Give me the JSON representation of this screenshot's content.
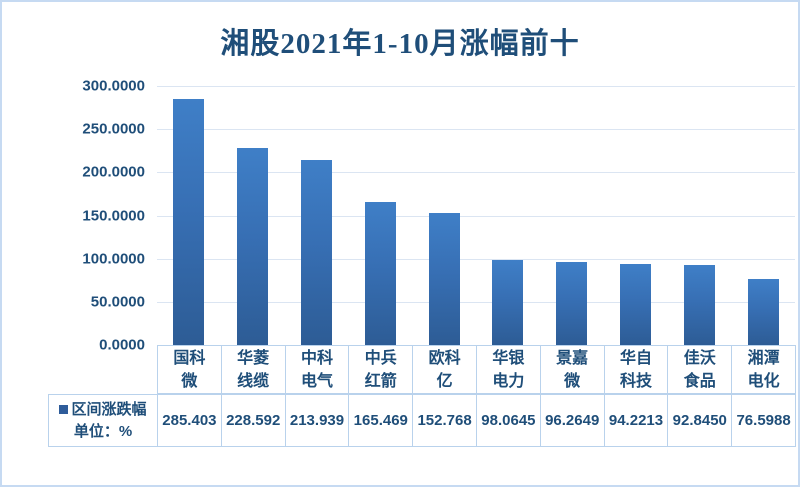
{
  "title": "湘股2021年1-10月涨幅前十",
  "legend": {
    "series_label": "区间涨跌幅",
    "unit_label": "单位：%",
    "key_icon": "legend-key-square"
  },
  "chart_data": {
    "type": "bar",
    "title": "湘股2021年1-10月涨幅前十",
    "categories": [
      "国科微",
      "华菱线缆",
      "中科电气",
      "中兵红箭",
      "欧科亿",
      "华银电力",
      "景嘉微",
      "华自科技",
      "佳沃食品",
      "湘潭电化"
    ],
    "values": [
      285.403,
      228.592,
      213.939,
      165.469,
      152.768,
      98.0645,
      96.2649,
      94.2213,
      92.845,
      76.5988
    ],
    "value_labels": [
      "285.403",
      "228.592",
      "213.939",
      "165.469",
      "152.768",
      "98.0645",
      "96.2649",
      "94.2213",
      "92.8450",
      "76.5988"
    ],
    "series": [
      {
        "name": "区间涨跌幅",
        "unit": "%",
        "values": [
          285.403,
          228.592,
          213.939,
          165.469,
          152.768,
          98.0645,
          96.2649,
          94.2213,
          92.845,
          76.5988
        ]
      }
    ],
    "xlabel": "",
    "ylabel": "",
    "ylim": [
      0,
      300
    ],
    "y_tick_labels": [
      "300.0000",
      "250.0000",
      "200.0000",
      "150.0000",
      "100.0000",
      "50.0000",
      "0.0000"
    ],
    "y_tick_values": [
      300,
      250,
      200,
      150,
      100,
      50,
      0
    ],
    "grid": "horizontal",
    "legend_position": "bottom-left-table",
    "data_table_shown": true
  },
  "colors": {
    "title_text": "#1f4e79",
    "axis_text": "#1f4e79",
    "table_text": "#1f4e79",
    "bar_top": "#3f7fc7",
    "bar_bottom": "#2d5c95",
    "gridline": "#dbe5f2",
    "table_border": "#b9d2ec",
    "page_border": "#c6daf2",
    "background": "#ffffff",
    "legend_key": "#2e5c9a"
  }
}
